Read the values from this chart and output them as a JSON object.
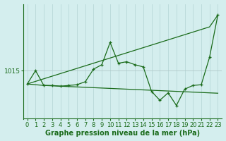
{
  "xlabel": "Graphe pression niveau de la mer (hPa)",
  "x": [
    0,
    1,
    2,
    3,
    4,
    5,
    6,
    7,
    8,
    9,
    10,
    11,
    12,
    13,
    14,
    15,
    16,
    17,
    18,
    19,
    20,
    21,
    22,
    23
  ],
  "y_data": [
    1013.2,
    1015.0,
    1013.0,
    1013.0,
    1012.9,
    1013.0,
    1013.1,
    1013.5,
    1015.2,
    1015.8,
    1018.8,
    1016.0,
    1016.2,
    1015.8,
    1015.5,
    1012.2,
    1011.0,
    1012.0,
    1010.3,
    1012.5,
    1013.0,
    1013.1,
    1016.8,
    1022.5
  ],
  "y_trend_up": [
    1013.2,
    1013.55,
    1013.9,
    1014.25,
    1014.6,
    1014.95,
    1015.3,
    1015.65,
    1016.0,
    1016.35,
    1016.7,
    1017.05,
    1017.4,
    1017.75,
    1018.1,
    1018.45,
    1018.8,
    1019.15,
    1019.5,
    1019.85,
    1020.2,
    1020.55,
    1020.9,
    1022.5
  ],
  "y_trend_flat": [
    1013.2,
    1013.1,
    1013.0,
    1012.95,
    1012.9,
    1012.85,
    1012.8,
    1012.75,
    1012.7,
    1012.65,
    1012.6,
    1012.55,
    1012.5,
    1012.45,
    1012.4,
    1012.35,
    1012.3,
    1012.25,
    1012.2,
    1012.15,
    1012.1,
    1012.05,
    1012.0,
    1011.95
  ],
  "line_color": "#1a6b1a",
  "bg_color": "#d4eeee",
  "vgrid_color": "#b8d8d8",
  "hgrid_color": "#b0c8c8",
  "ytick_label": "1015",
  "ytick_value": 1015,
  "ylim_min": 1008.5,
  "ylim_max": 1024.0,
  "xlabel_fontsize": 7,
  "tick_fontsize": 6.5,
  "figwidth": 3.2,
  "figheight": 2.0,
  "dpi": 100
}
